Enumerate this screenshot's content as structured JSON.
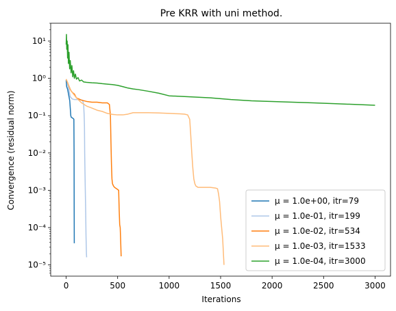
{
  "chart_data": {
    "type": "line",
    "title": "Pre KRR with uni method.",
    "xlabel": "Iterations",
    "ylabel": "Convergence (residual norm)",
    "xlim": [
      -150,
      3150
    ],
    "ylim": [
      5e-06,
      30
    ],
    "yscale": "log",
    "grid": false,
    "legend_position": "lower right",
    "xticks": [
      0,
      500,
      1000,
      1500,
      2000,
      2500,
      3000
    ],
    "yticks": [
      {
        "value": 1e-05,
        "label": "10⁻⁵"
      },
      {
        "value": 0.0001,
        "label": "10⁻⁴"
      },
      {
        "value": 0.001,
        "label": "10⁻³"
      },
      {
        "value": 0.01,
        "label": "10⁻²"
      },
      {
        "value": 0.1,
        "label": "10⁻¹"
      },
      {
        "value": 1,
        "label": "10⁰"
      },
      {
        "value": 10,
        "label": "10¹"
      }
    ],
    "series": [
      {
        "name": "μ = 1.0e+00, itr=79",
        "color": "#1f77b4",
        "x": [
          0,
          5,
          10,
          15,
          20,
          28,
          35,
          45,
          50,
          58,
          65,
          70,
          75,
          77,
          78,
          79
        ],
        "y": [
          0.9,
          0.6,
          0.55,
          0.5,
          0.42,
          0.32,
          0.25,
          0.1,
          0.09,
          0.088,
          0.085,
          0.083,
          0.08,
          0.01,
          0.0003,
          3.8e-05
        ]
      },
      {
        "name": "μ = 1.0e-01, itr=199",
        "color": "#aec7e8",
        "x": [
          0,
          10,
          20,
          30,
          40,
          60,
          80,
          100,
          120,
          140,
          160,
          170,
          175,
          178,
          180,
          183,
          186,
          190,
          193,
          197,
          199
        ],
        "y": [
          0.95,
          0.8,
          0.6,
          0.45,
          0.32,
          0.28,
          0.27,
          0.27,
          0.27,
          0.265,
          0.26,
          0.2,
          0.1,
          0.05,
          0.01,
          0.003,
          0.001,
          0.00025,
          6e-05,
          2e-05,
          1.6e-05
        ]
      },
      {
        "name": "μ = 1.0e-02, itr=534",
        "color": "#ff7f0e",
        "x": [
          0,
          20,
          40,
          60,
          80,
          100,
          150,
          200,
          250,
          300,
          350,
          400,
          420,
          430,
          435,
          440,
          445,
          450,
          460,
          470,
          480,
          490,
          500,
          510,
          515,
          520,
          525,
          530,
          534
        ],
        "y": [
          0.95,
          0.7,
          0.5,
          0.42,
          0.38,
          0.3,
          0.26,
          0.24,
          0.23,
          0.23,
          0.22,
          0.22,
          0.2,
          0.1,
          0.02,
          0.005,
          0.002,
          0.0015,
          0.0013,
          0.0012,
          0.00115,
          0.0011,
          0.00105,
          0.001,
          0.0003,
          0.00012,
          0.0001,
          4e-05,
          1.7e-05
        ]
      },
      {
        "name": "μ = 1.0e-03, itr=1533",
        "color": "#ffbb78",
        "x": [
          0,
          20,
          50,
          100,
          150,
          200,
          250,
          300,
          350,
          400,
          450,
          500,
          550,
          600,
          650,
          700,
          800,
          900,
          1000,
          1100,
          1150,
          1180,
          1200,
          1210,
          1220,
          1230,
          1240,
          1250,
          1260,
          1280,
          1300,
          1350,
          1400,
          1450,
          1470,
          1480,
          1490,
          1500,
          1510,
          1520,
          1533
        ],
        "y": [
          0.95,
          0.7,
          0.45,
          0.3,
          0.22,
          0.18,
          0.16,
          0.14,
          0.13,
          0.115,
          0.108,
          0.105,
          0.105,
          0.11,
          0.12,
          0.12,
          0.12,
          0.118,
          0.115,
          0.112,
          0.11,
          0.105,
          0.08,
          0.03,
          0.01,
          0.004,
          0.002,
          0.0015,
          0.0013,
          0.0012,
          0.0012,
          0.0012,
          0.0012,
          0.00115,
          0.0011,
          0.0008,
          0.0005,
          0.0002,
          0.0001,
          5e-05,
          1e-05
        ]
      },
      {
        "name": "μ = 1.0e-04, itr=3000",
        "color": "#2ca02c",
        "x": [
          0,
          3,
          6,
          10,
          14,
          18,
          22,
          28,
          34,
          40,
          48,
          56,
          64,
          72,
          80,
          90,
          100,
          115,
          130,
          150,
          170,
          200,
          250,
          300,
          350,
          400,
          450,
          500,
          550,
          600,
          650,
          700,
          800,
          900,
          1000,
          1200,
          1400,
          1600,
          1800,
          2000,
          2200,
          2400,
          2600,
          2800,
          3000
        ],
        "y": [
          8,
          15,
          6,
          10,
          3.5,
          8,
          2.5,
          5,
          1.8,
          3,
          1.4,
          2.2,
          1.1,
          1.6,
          1.0,
          1.3,
          0.95,
          1.05,
          0.85,
          0.9,
          0.8,
          0.78,
          0.76,
          0.75,
          0.72,
          0.7,
          0.68,
          0.65,
          0.6,
          0.55,
          0.52,
          0.5,
          0.45,
          0.4,
          0.34,
          0.32,
          0.3,
          0.27,
          0.25,
          0.24,
          0.23,
          0.22,
          0.21,
          0.2,
          0.19
        ]
      }
    ]
  }
}
